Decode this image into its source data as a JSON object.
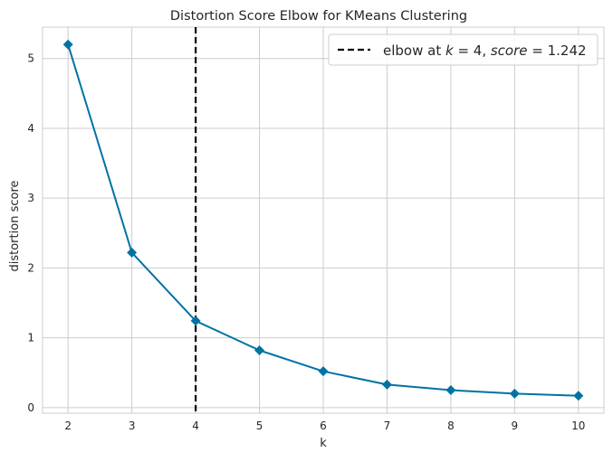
{
  "chart_data": {
    "type": "line",
    "title": "Distortion Score Elbow for KMeans Clustering",
    "xlabel": "k",
    "ylabel": "distortion score",
    "x": [
      2,
      3,
      4,
      5,
      6,
      7,
      8,
      9,
      10
    ],
    "xticks": [
      2,
      3,
      4,
      5,
      6,
      7,
      8,
      9,
      10
    ],
    "yticks": [
      0,
      1,
      2,
      3,
      4,
      5
    ],
    "xlim": [
      1.6,
      10.4
    ],
    "ylim": [
      -0.08,
      5.45
    ],
    "grid": true,
    "series": [
      {
        "values": [
          5.2,
          2.22,
          1.242,
          0.82,
          0.52,
          0.33,
          0.25,
          0.2,
          0.17
        ],
        "color": "#0173a2",
        "marker": "diamond"
      }
    ],
    "elbow": {
      "k": 4,
      "score": 1.242,
      "color": "#000000",
      "line_style": "dashed"
    },
    "legend": {
      "placement": "top-right",
      "prefix": "elbow at ",
      "k_symbol": "k",
      "k_text": " = 4, ",
      "score_symbol": "score",
      "score_text": " = 1.242"
    }
  }
}
